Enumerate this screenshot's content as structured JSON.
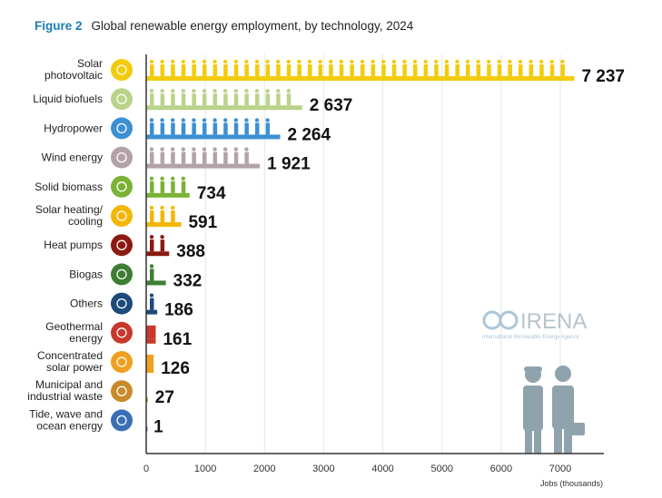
{
  "figure_label": "Figure 2",
  "figure_title": "Global renewable energy employment, by technology, 2024",
  "logo": {
    "name": "IRENA",
    "subtitle": "International Renewable Energy Agency"
  },
  "chart_data": {
    "type": "bar",
    "orientation": "horizontal",
    "title": "Global renewable energy employment, by technology, 2024",
    "xlabel": "Jobs (thousands)",
    "ylabel": "",
    "xlim": [
      0,
      7700
    ],
    "xticks": [
      0,
      1000,
      2000,
      3000,
      4000,
      5000,
      6000,
      7000
    ],
    "xtick_labels": [
      "0",
      "1000",
      "2000",
      "3000",
      "4000",
      "5000",
      "6000",
      "7000"
    ],
    "grid": true,
    "categories": [
      {
        "label": [
          "Solar",
          "photovoltaic"
        ],
        "value": 7237,
        "value_label": "7 237",
        "color": "#f2cc0c",
        "icon": "sun-icon"
      },
      {
        "label": [
          "Liquid biofuels"
        ],
        "value": 2637,
        "value_label": "2 637",
        "color": "#b9d38a",
        "icon": "leaf-icon"
      },
      {
        "label": [
          "Hydropower"
        ],
        "value": 2264,
        "value_label": "2 264",
        "color": "#3d8fd1",
        "icon": "water-drop-icon"
      },
      {
        "label": [
          "Wind energy"
        ],
        "value": 1921,
        "value_label": "1 921",
        "color": "#b3a2a6",
        "icon": "wind-turbine-icon"
      },
      {
        "label": [
          "Solid biomass"
        ],
        "value": 734,
        "value_label": "734",
        "color": "#7ab236",
        "icon": "leaf-icon"
      },
      {
        "label": [
          "Solar heating/",
          "cooling"
        ],
        "value": 591,
        "value_label": "591",
        "color": "#f2b705",
        "icon": "sun-icon"
      },
      {
        "label": [
          "Heat pumps"
        ],
        "value": 388,
        "value_label": "388",
        "color": "#8b1a10",
        "icon": "heat-coil-icon"
      },
      {
        "label": [
          "Biogas"
        ],
        "value": 332,
        "value_label": "332",
        "color": "#3e7d33",
        "icon": "leaf-icon"
      },
      {
        "label": [
          "Others"
        ],
        "value": 186,
        "value_label": "186",
        "color": "#1d4a7a",
        "icon": "plus-plus-icon"
      },
      {
        "label": [
          "Geothermal",
          "energy"
        ],
        "value": 161,
        "value_label": "161",
        "color": "#c8392b",
        "icon": "volcano-icon"
      },
      {
        "label": [
          "Concentrated",
          "solar power"
        ],
        "value": 126,
        "value_label": "126",
        "color": "#f0a020",
        "icon": "sun-icon"
      },
      {
        "label": [
          "Municipal and",
          "industrial waste"
        ],
        "value": 27,
        "value_label": "27",
        "color": "#c98a2a",
        "icon": "trash-bin-icon"
      },
      {
        "label": [
          "Tide, wave and",
          "ocean energy"
        ],
        "value": 1,
        "value_label": "1",
        "color": "#3a6fb5",
        "icon": "wave-icon"
      }
    ]
  }
}
